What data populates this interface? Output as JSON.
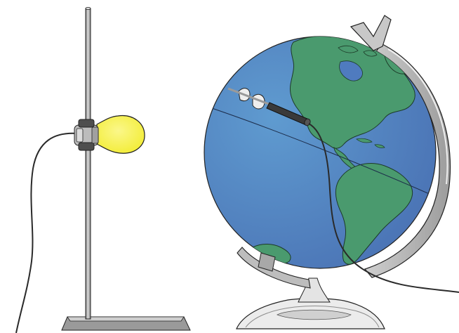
{
  "diagram": {
    "elements": [
      "ring-stand",
      "light-bulb",
      "bulb-clamp",
      "bulb-power-cord",
      "globe",
      "globe-meridian-ring",
      "globe-stand-base",
      "temperature-probe",
      "probe-cable"
    ]
  },
  "colors": {
    "ocean": "#4a72b4",
    "ocean_light": "#5f9bd0",
    "land": "#4a9a6e",
    "land_outline": "#1d3b28",
    "bulb": "#f2ec30",
    "stand_metal": "#b6b6b6",
    "stand_dark": "#5a5a5a",
    "base_white": "#ececec",
    "cable": "#2a2a2a",
    "outline": "#222222"
  }
}
